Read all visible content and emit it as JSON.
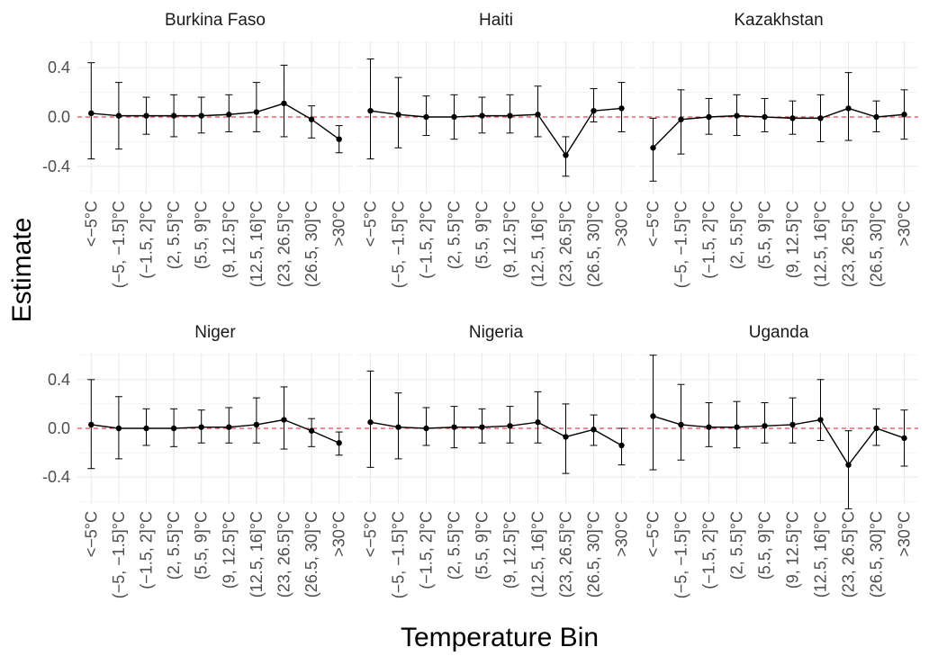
{
  "chart_data": {
    "type": "scatter",
    "xlabel": "Temperature Bin",
    "ylabel": "Estimate",
    "ylim": [
      -0.62,
      0.62
    ],
    "yticks": [
      {
        "value": 0.4,
        "label": "0.4"
      },
      {
        "value": 0.0,
        "label": "0.0"
      },
      {
        "value": -0.4,
        "label": "-0.4"
      }
    ],
    "categories": [
      "<−5°C",
      "(−5, −1.5]°C",
      "(−1.5, 2]°C",
      "(2, 5.5]°C",
      "(5.5, 9]°C",
      "(9, 12.5]°C",
      "(12.5, 16]°C",
      "(23, 26.5]°C",
      "(26.5, 30]°C",
      ">30°C"
    ],
    "reference_line": {
      "value": 0,
      "color": "#e31a1c",
      "style": "dashed"
    },
    "colors": {
      "point": "#000000",
      "line": "#000000",
      "grid": "#ebebeb",
      "reference": "#e31a1c"
    },
    "panels": [
      {
        "title": "Burkina Faso",
        "estimates": [
          0.03,
          0.01,
          0.01,
          0.01,
          0.01,
          0.02,
          0.04,
          0.11,
          -0.02,
          -0.18
        ],
        "lower": [
          -0.34,
          -0.26,
          -0.14,
          -0.16,
          -0.13,
          -0.12,
          -0.12,
          -0.16,
          -0.17,
          -0.29
        ],
        "upper": [
          0.44,
          0.28,
          0.16,
          0.18,
          0.16,
          0.18,
          0.28,
          0.42,
          0.09,
          -0.07
        ]
      },
      {
        "title": "Haiti",
        "estimates": [
          0.05,
          0.02,
          0.0,
          0.0,
          0.01,
          0.01,
          0.02,
          -0.31,
          0.05,
          0.07
        ],
        "lower": [
          -0.34,
          -0.25,
          -0.15,
          -0.18,
          -0.13,
          -0.13,
          -0.16,
          -0.48,
          -0.04,
          -0.12
        ],
        "upper": [
          0.47,
          0.32,
          0.17,
          0.18,
          0.16,
          0.18,
          0.25,
          -0.16,
          0.23,
          0.28
        ]
      },
      {
        "title": "Kazakhstan",
        "estimates": [
          -0.25,
          -0.02,
          0.0,
          0.01,
          0.0,
          -0.01,
          -0.01,
          0.07,
          0.0,
          0.02
        ],
        "lower": [
          -0.52,
          -0.3,
          -0.14,
          -0.15,
          -0.12,
          -0.14,
          -0.2,
          -0.19,
          -0.12,
          -0.18
        ],
        "upper": [
          -0.01,
          0.22,
          0.15,
          0.18,
          0.15,
          0.13,
          0.18,
          0.36,
          0.13,
          0.22
        ]
      },
      {
        "title": "Niger",
        "estimates": [
          0.03,
          0.0,
          0.0,
          0.0,
          0.01,
          0.01,
          0.03,
          0.07,
          -0.02,
          -0.12
        ],
        "lower": [
          -0.33,
          -0.25,
          -0.14,
          -0.15,
          -0.12,
          -0.12,
          -0.12,
          -0.17,
          -0.15,
          -0.22
        ],
        "upper": [
          0.4,
          0.26,
          0.16,
          0.16,
          0.15,
          0.17,
          0.25,
          0.34,
          0.08,
          -0.03
        ]
      },
      {
        "title": "Nigeria",
        "estimates": [
          0.05,
          0.01,
          0.0,
          0.01,
          0.01,
          0.02,
          0.05,
          -0.07,
          -0.01,
          -0.14
        ],
        "lower": [
          -0.32,
          -0.25,
          -0.14,
          -0.16,
          -0.12,
          -0.12,
          -0.12,
          -0.37,
          -0.14,
          -0.3
        ],
        "upper": [
          0.47,
          0.29,
          0.17,
          0.18,
          0.16,
          0.18,
          0.3,
          0.2,
          0.11,
          0.0
        ]
      },
      {
        "title": "Uganda",
        "estimates": [
          0.1,
          0.03,
          0.01,
          0.01,
          0.02,
          0.03,
          0.07,
          -0.3,
          0.0,
          -0.08
        ],
        "lower": [
          -0.34,
          -0.26,
          -0.15,
          -0.16,
          -0.12,
          -0.12,
          -0.1,
          -0.66,
          -0.14,
          -0.31
        ],
        "upper": [
          0.6,
          0.36,
          0.21,
          0.22,
          0.21,
          0.25,
          0.4,
          -0.02,
          0.16,
          0.15
        ]
      }
    ]
  }
}
